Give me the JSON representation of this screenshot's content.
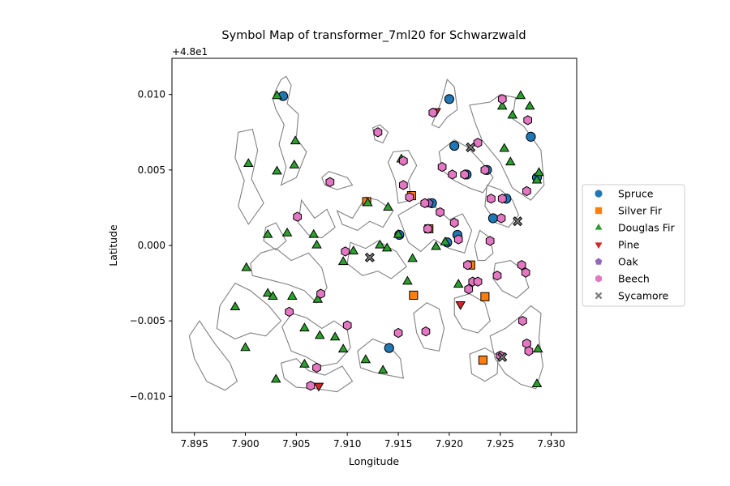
{
  "chart_data": {
    "type": "scatter",
    "title": "Symbol Map of transformer_7ml20 for Schwarzwald",
    "xlabel": "Longitude",
    "ylabel": "Latitude",
    "offset_label": "+4.8e1",
    "xlim": [
      7.8928,
      7.9325
    ],
    "ylim": [
      -0.0124,
      0.0124
    ],
    "x_ticks": [
      7.895,
      7.9,
      7.905,
      7.91,
      7.915,
      7.92,
      7.925,
      7.93
    ],
    "x_tick_labels": [
      "7.895",
      "7.900",
      "7.905",
      "7.910",
      "7.915",
      "7.920",
      "7.925",
      "7.930"
    ],
    "y_ticks": [
      0.01,
      0.005,
      0.0,
      -0.005,
      -0.01
    ],
    "y_tick_labels": [
      "0.010",
      "0.005",
      "0.000",
      "−0.005",
      "−0.010"
    ],
    "grid": false,
    "legend_position": "outside-right",
    "series": [
      {
        "name": "Spruce",
        "marker": "circle",
        "color": "#1f77b4",
        "x": [
          7.9037,
          7.92,
          7.9205,
          7.9217,
          7.9237,
          7.928,
          7.9151,
          7.9183,
          7.9198,
          7.9208,
          7.9256,
          7.9243,
          7.9141,
          7.9286
        ],
        "y": [
          0.0099,
          0.0097,
          0.0066,
          0.0047,
          0.005,
          0.0072,
          0.0007,
          0.0028,
          0.0002,
          0.0007,
          0.0031,
          0.0018,
          -0.0068,
          0.0045
        ]
      },
      {
        "name": "Silver Fir",
        "marker": "square",
        "color": "#ff7f0e",
        "x": [
          7.9119,
          7.9163,
          7.918,
          7.9221,
          7.9165,
          7.9235,
          7.9233
        ],
        "y": [
          0.0029,
          0.0033,
          0.0011,
          -0.0013,
          -0.0033,
          -0.0034,
          -0.0076
        ]
      },
      {
        "name": "Douglas Fir",
        "marker": "triangle-up",
        "color": "#2ca02c",
        "x": [
          7.9031,
          7.927,
          7.9252,
          7.9262,
          7.9279,
          7.9288,
          7.9286,
          7.9254,
          7.926,
          7.9049,
          7.9003,
          7.9031,
          7.9048,
          7.912,
          7.914,
          7.9022,
          7.9041,
          7.9067,
          7.9001,
          7.9132,
          7.915,
          7.9106,
          7.9096,
          7.9139,
          7.9164,
          7.9187,
          7.9196,
          7.9159,
          7.9209,
          7.9022,
          7.9046,
          7.9027,
          7.9071,
          7.9058,
          7.899,
          7.9073,
          7.9088,
          7.9096,
          7.9,
          7.9118,
          7.9135,
          7.9287,
          7.9286,
          7.903,
          7.9058,
          7.9153,
          7.907
        ],
        "y": [
          0.0099,
          0.0099,
          0.0092,
          0.0086,
          0.0092,
          0.0048,
          0.0043,
          0.0064,
          0.0055,
          0.0069,
          0.0054,
          0.0049,
          0.0053,
          0.0028,
          0.0025,
          0.0007,
          0.0008,
          0.0007,
          -0.0015,
          0.0,
          0.0007,
          -0.0004,
          -0.0011,
          -0.0002,
          -0.0009,
          -0.0001,
          0.0002,
          -0.0024,
          -0.0026,
          -0.0032,
          -0.0034,
          -0.0034,
          -0.0036,
          -0.0055,
          -0.0041,
          -0.006,
          -0.0061,
          -0.0069,
          -0.0068,
          -0.0076,
          -0.0083,
          -0.0069,
          -0.0092,
          -0.0089,
          -0.0079,
          0.0057,
          0.0
        ]
      },
      {
        "name": "Pine",
        "marker": "triangle-down",
        "color": "#d62728",
        "x": [
          7.9187,
          7.9211,
          7.9072
        ],
        "y": [
          0.0089,
          -0.0039,
          -0.0093
        ]
      },
      {
        "name": "Oak",
        "marker": "pentagon",
        "color": "#9467bd",
        "x": [
          7.918
        ],
        "y": [
          0.0028
        ]
      },
      {
        "name": "Beech",
        "marker": "hexagon",
        "color": "#e377c2",
        "x": [
          7.9184,
          7.9252,
          7.9277,
          7.913,
          7.9228,
          7.9235,
          7.9155,
          7.9193,
          7.9203,
          7.9215,
          7.9241,
          7.9252,
          7.9276,
          7.9155,
          7.9161,
          7.9191,
          7.9179,
          7.9205,
          7.9209,
          7.9218,
          7.924,
          7.9083,
          7.9051,
          7.9176,
          7.9098,
          7.9271,
          7.9275,
          7.9247,
          7.9223,
          7.9228,
          7.925,
          7.9219,
          7.9074,
          7.9043,
          7.91,
          7.915,
          7.9177,
          7.9272,
          7.9276,
          7.9278,
          7.9251,
          7.907,
          7.9064
        ],
        "y": [
          0.0088,
          0.0097,
          0.0083,
          0.0075,
          0.0068,
          0.005,
          0.0056,
          0.0052,
          0.0047,
          0.0047,
          0.0031,
          0.0031,
          0.0036,
          0.004,
          0.0032,
          0.0022,
          0.0011,
          0.0015,
          0.0004,
          -0.0013,
          0.0003,
          0.0042,
          0.0019,
          0.0028,
          -0.0004,
          -0.0013,
          -0.0018,
          -0.002,
          -0.0024,
          -0.0024,
          -0.0073,
          -0.0029,
          -0.0032,
          -0.0044,
          -0.0053,
          -0.0058,
          -0.0057,
          -0.005,
          -0.0065,
          -0.007,
          0.0018,
          -0.0081,
          -0.0093
        ]
      },
      {
        "name": "Sycamore",
        "marker": "x",
        "color": "#7f7f7f",
        "x": [
          7.9221,
          7.9267,
          7.9122,
          7.9252
        ],
        "y": [
          0.0065,
          0.0016,
          -0.0008,
          -0.0074
        ]
      }
    ],
    "parcels": [
      [
        [
          7.9027,
          0.0097
        ],
        [
          7.903,
          0.0103
        ],
        [
          7.9035,
          0.011
        ],
        [
          7.904,
          0.0112
        ],
        [
          7.9045,
          0.0106
        ],
        [
          7.9041,
          0.0094
        ],
        [
          7.9052,
          0.0087
        ],
        [
          7.905,
          0.0071
        ],
        [
          7.906,
          0.0062
        ],
        [
          7.905,
          0.0045
        ],
        [
          7.9035,
          0.004
        ],
        [
          7.904,
          0.0052
        ],
        [
          7.9033,
          0.0067
        ],
        [
          7.9038,
          0.008
        ],
        [
          7.903,
          0.009
        ]
      ],
      [
        [
          7.8993,
          0.0075
        ],
        [
          7.9007,
          0.0077
        ],
        [
          7.9012,
          0.0063
        ],
        [
          7.9006,
          0.0044
        ],
        [
          7.9018,
          0.0028
        ],
        [
          7.9003,
          0.0014
        ],
        [
          7.8993,
          0.0026
        ],
        [
          7.8999,
          0.0043
        ],
        [
          7.899,
          0.0058
        ]
      ],
      [
        [
          7.9075,
          0.0045
        ],
        [
          7.9082,
          0.0049
        ],
        [
          7.91,
          0.0045
        ],
        [
          7.9105,
          0.004
        ],
        [
          7.909,
          0.0037
        ],
        [
          7.9078,
          0.004
        ]
      ],
      [
        [
          7.909,
          0.0023
        ],
        [
          7.9105,
          0.0018
        ],
        [
          7.9118,
          0.0032
        ],
        [
          7.913,
          0.003
        ],
        [
          7.9145,
          0.0023
        ],
        [
          7.9135,
          0.0012
        ],
        [
          7.9122,
          0.0016
        ],
        [
          7.911,
          0.001
        ],
        [
          7.9095,
          0.0014
        ]
      ],
      [
        [
          7.9125,
          0.0078
        ],
        [
          7.9132,
          0.008
        ],
        [
          7.914,
          0.0075
        ],
        [
          7.9135,
          0.0068
        ],
        [
          7.9127,
          0.007
        ]
      ],
      [
        [
          7.9145,
          0.0062
        ],
        [
          7.916,
          0.0063
        ],
        [
          7.9168,
          0.0053
        ],
        [
          7.916,
          0.0043
        ],
        [
          7.9163,
          0.003
        ],
        [
          7.915,
          0.0028
        ],
        [
          7.9147,
          0.0043
        ],
        [
          7.914,
          0.0055
        ]
      ],
      [
        [
          7.9183,
          0.008
        ],
        [
          7.9192,
          0.0095
        ],
        [
          7.9198,
          0.011
        ],
        [
          7.9205,
          0.0105
        ],
        [
          7.9208,
          0.009
        ],
        [
          7.9198,
          0.0085
        ],
        [
          7.919,
          0.0078
        ]
      ],
      [
        [
          7.922,
          0.0093
        ],
        [
          7.924,
          0.0095
        ],
        [
          7.925,
          0.01
        ],
        [
          7.9265,
          0.0098
        ],
        [
          7.9262,
          0.0084
        ],
        [
          7.9273,
          0.0079
        ],
        [
          7.929,
          0.0063
        ],
        [
          7.9293,
          0.004
        ],
        [
          7.928,
          0.003
        ],
        [
          7.9262,
          0.0038
        ],
        [
          7.925,
          0.0055
        ],
        [
          7.9232,
          0.007
        ],
        [
          7.9225,
          0.0082
        ]
      ],
      [
        [
          7.919,
          0.0062
        ],
        [
          7.9205,
          0.007
        ],
        [
          7.9218,
          0.0065
        ],
        [
          7.9232,
          0.0055
        ],
        [
          7.9243,
          0.0045
        ],
        [
          7.9233,
          0.0035
        ],
        [
          7.922,
          0.0038
        ],
        [
          7.9205,
          0.0043
        ],
        [
          7.9193,
          0.005
        ]
      ],
      [
        [
          7.915,
          0.002
        ],
        [
          7.917,
          0.0028
        ],
        [
          7.9187,
          0.0025
        ],
        [
          7.92,
          0.0017
        ],
        [
          7.9213,
          0.0021
        ],
        [
          7.9222,
          0.001
        ],
        [
          7.9215,
          -0.0005
        ],
        [
          7.92,
          -0.0002
        ],
        [
          7.9185,
          0.0004
        ],
        [
          7.9172,
          -0.0004
        ],
        [
          7.916,
          0.0002
        ]
      ],
      [
        [
          7.9103,
          0.0002
        ],
        [
          7.9118,
          -0.0002
        ],
        [
          7.913,
          0.0003
        ],
        [
          7.9148,
          -0.0004
        ],
        [
          7.9158,
          -0.0014
        ],
        [
          7.9143,
          -0.0022
        ],
        [
          7.913,
          -0.0017
        ],
        [
          7.9115,
          -0.002
        ],
        [
          7.91,
          -0.0012
        ]
      ],
      [
        [
          7.9015,
          -0.0005
        ],
        [
          7.903,
          -0.0002
        ],
        [
          7.9045,
          -0.001
        ],
        [
          7.9062,
          -0.0005
        ],
        [
          7.9075,
          -0.0015
        ],
        [
          7.908,
          -0.0028
        ],
        [
          7.907,
          -0.0038
        ],
        [
          7.9058,
          -0.003
        ],
        [
          7.9042,
          -0.0026
        ],
        [
          7.9025,
          -0.0023
        ],
        [
          7.9007,
          -0.002
        ],
        [
          7.9005,
          -0.0012
        ]
      ],
      [
        [
          7.8975,
          -0.004
        ],
        [
          7.899,
          -0.0025
        ],
        [
          7.9005,
          -0.003
        ],
        [
          7.9023,
          -0.004
        ],
        [
          7.9035,
          -0.005
        ],
        [
          7.902,
          -0.006
        ],
        [
          7.9005,
          -0.0058
        ],
        [
          7.899,
          -0.0062
        ],
        [
          7.8972,
          -0.0055
        ]
      ],
      [
        [
          7.8955,
          -0.005
        ],
        [
          7.897,
          -0.0065
        ],
        [
          7.8985,
          -0.0078
        ],
        [
          7.8992,
          -0.009
        ],
        [
          7.898,
          -0.0096
        ],
        [
          7.8962,
          -0.009
        ],
        [
          7.895,
          -0.0075
        ],
        [
          7.8945,
          -0.006
        ]
      ],
      [
        [
          7.9036,
          -0.0054
        ],
        [
          7.9046,
          -0.0045
        ],
        [
          7.906,
          -0.0048
        ],
        [
          7.9075,
          -0.0055
        ],
        [
          7.9087,
          -0.005
        ],
        [
          7.91,
          -0.0056
        ],
        [
          7.9103,
          -0.0068
        ],
        [
          7.909,
          -0.0078
        ],
        [
          7.9075,
          -0.008
        ],
        [
          7.906,
          -0.0074
        ],
        [
          7.9045,
          -0.007
        ]
      ],
      [
        [
          7.9035,
          -0.0078
        ],
        [
          7.905,
          -0.0075
        ],
        [
          7.9062,
          -0.0083
        ],
        [
          7.9078,
          -0.0086
        ],
        [
          7.9095,
          -0.008
        ],
        [
          7.9105,
          -0.009
        ],
        [
          7.909,
          -0.0097
        ],
        [
          7.907,
          -0.0095
        ],
        [
          7.905,
          -0.0094
        ],
        [
          7.9038,
          -0.0088
        ]
      ],
      [
        [
          7.911,
          -0.007
        ],
        [
          7.9125,
          -0.0062
        ],
        [
          7.914,
          -0.0066
        ],
        [
          7.9152,
          -0.0075
        ],
        [
          7.9155,
          -0.0088
        ],
        [
          7.914,
          -0.0086
        ],
        [
          7.9126,
          -0.0084
        ],
        [
          7.9113,
          -0.0081
        ]
      ],
      [
        [
          7.9165,
          -0.0045
        ],
        [
          7.9178,
          -0.0038
        ],
        [
          7.919,
          -0.0042
        ],
        [
          7.9195,
          -0.0055
        ],
        [
          7.919,
          -0.007
        ],
        [
          7.9175,
          -0.0068
        ],
        [
          7.9168,
          -0.0058
        ]
      ],
      [
        [
          7.9205,
          -0.0035
        ],
        [
          7.922,
          -0.0032
        ],
        [
          7.9235,
          -0.0038
        ],
        [
          7.924,
          -0.005
        ],
        [
          7.9228,
          -0.0058
        ],
        [
          7.9213,
          -0.0055
        ],
        [
          7.9205,
          -0.0046
        ]
      ],
      [
        [
          7.924,
          -0.006
        ],
        [
          7.9255,
          -0.0055
        ],
        [
          7.9268,
          -0.0048
        ],
        [
          7.928,
          -0.004
        ],
        [
          7.929,
          -0.0045
        ],
        [
          7.9288,
          -0.0062
        ],
        [
          7.9292,
          -0.008
        ],
        [
          7.9285,
          -0.0095
        ],
        [
          7.927,
          -0.0092
        ],
        [
          7.9255,
          -0.0085
        ],
        [
          7.9245,
          -0.0075
        ]
      ],
      [
        [
          7.922,
          -0.0072
        ],
        [
          7.9235,
          -0.0068
        ],
        [
          7.9248,
          -0.0073
        ],
        [
          7.9247,
          -0.0085
        ],
        [
          7.9235,
          -0.009
        ],
        [
          7.9222,
          -0.0085
        ]
      ],
      [
        [
          7.9245,
          -0.0012
        ],
        [
          7.926,
          -0.001
        ],
        [
          7.9272,
          -0.0016
        ],
        [
          7.9278,
          -0.0028
        ],
        [
          7.9266,
          -0.0035
        ],
        [
          7.9252,
          -0.003
        ],
        [
          7.9243,
          -0.0022
        ]
      ],
      [
        [
          7.9237,
          0.004
        ],
        [
          7.925,
          0.0037
        ],
        [
          7.9262,
          0.003
        ],
        [
          7.9268,
          0.002
        ],
        [
          7.9258,
          0.0012
        ],
        [
          7.9246,
          0.0015
        ],
        [
          7.9235,
          0.0026
        ]
      ],
      [
        [
          7.9235,
          -0.001
        ],
        [
          7.9243,
          -0.0005
        ],
        [
          7.924,
          0.0005
        ],
        [
          7.923,
          0.001
        ],
        [
          7.9225,
          0.0
        ],
        [
          7.9228,
          -0.001
        ]
      ],
      [
        [
          7.9055,
          0.003
        ],
        [
          7.9068,
          0.0018
        ],
        [
          7.908,
          0.0024
        ],
        [
          7.9088,
          0.0012
        ],
        [
          7.9075,
          0.0005
        ],
        [
          7.9062,
          0.0007
        ],
        [
          7.9052,
          0.0015
        ]
      ],
      [
        [
          7.903,
          0.0015
        ],
        [
          7.904,
          0.0003
        ],
        [
          7.903,
          -0.0003
        ],
        [
          7.9018,
          0.0003
        ],
        [
          7.902,
          0.0012
        ]
      ]
    ]
  }
}
